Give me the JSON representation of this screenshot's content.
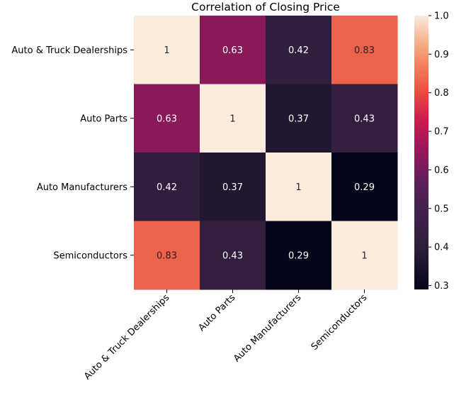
{
  "chart_data": {
    "type": "heatmap",
    "title": "Correlation of Closing Price",
    "xlabel": "",
    "ylabel": "",
    "rows": [
      "Auto & Truck Dealerships",
      "Auto Parts",
      "Auto Manufacturers",
      "Semiconductors"
    ],
    "columns": [
      "Auto & Truck Dealerships",
      "Auto Parts",
      "Auto Manufacturers",
      "Semiconductors"
    ],
    "values": [
      [
        1,
        0.63,
        0.42,
        0.83
      ],
      [
        0.63,
        1,
        0.37,
        0.43
      ],
      [
        0.42,
        0.37,
        1,
        0.29
      ],
      [
        0.83,
        0.43,
        0.29,
        1
      ]
    ],
    "annotations": [
      [
        "1",
        "0.63",
        "0.42",
        "0.83"
      ],
      [
        "0.63",
        "1",
        "0.37",
        "0.43"
      ],
      [
        "0.42",
        "0.37",
        "1",
        "0.29"
      ],
      [
        "0.83",
        "0.43",
        "0.29",
        "1"
      ]
    ],
    "colorbar": {
      "range": [
        0.29,
        1.0
      ],
      "ticks": [
        "0.3",
        "0.4",
        "0.5",
        "0.6",
        "0.7",
        "0.8",
        "0.9",
        "1.0"
      ],
      "colormap": "rocket"
    }
  }
}
